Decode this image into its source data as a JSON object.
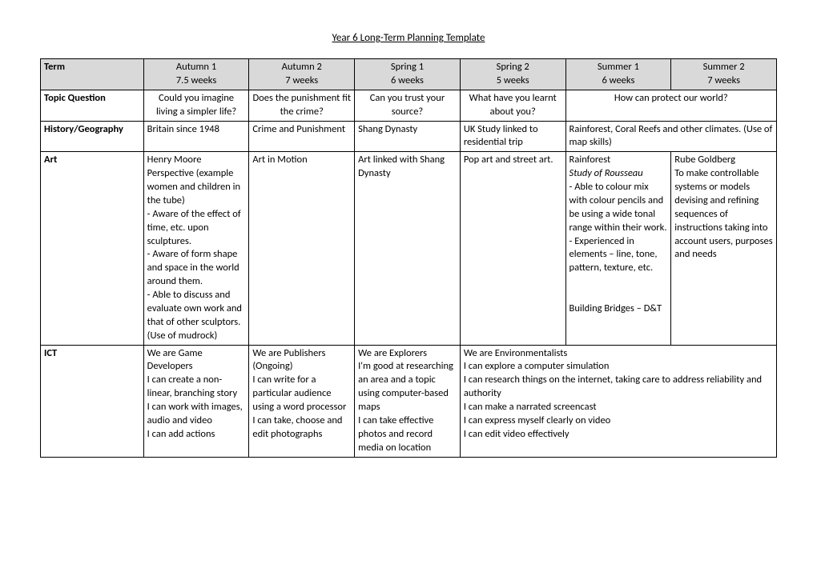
{
  "title": "Year 6 Long-Term Planning Template",
  "columns": {
    "term_label": "Term",
    "terms": [
      {
        "name": "Autumn 1",
        "weeks": "7.5 weeks"
      },
      {
        "name": "Autumn 2",
        "weeks": "7 weeks"
      },
      {
        "name": "Spring 1",
        "weeks": "6 weeks"
      },
      {
        "name": "Spring 2",
        "weeks": "5 weeks"
      },
      {
        "name": "Summer 1",
        "weeks": "6 weeks"
      },
      {
        "name": "Summer 2",
        "weeks": "7 weeks"
      }
    ]
  },
  "rows": {
    "topic": {
      "label": "Topic Question",
      "c1": "Could you imagine living a simpler life?",
      "c2": "Does the punishment fit the crime?",
      "c3": "Can you trust your source?",
      "c4": "What have you learnt about you?",
      "c56": "How can protect our world?"
    },
    "histgeo": {
      "label": "History/Geography",
      "c1": "Britain since 1948",
      "c2": "Crime and Punishment",
      "c3": "Shang Dynasty",
      "c4": "UK Study linked to residential trip",
      "c56": "Rainforest, Coral Reefs and other climates. (Use of map skills)"
    },
    "art": {
      "label": "Art",
      "c1": "Henry Moore Perspective (example women and children in the tube)\n- Aware of the effect of time, etc. upon sculptures.\n- Aware of form shape and space in the world around them.\n- Able to discuss and evaluate own work and that of other sculptors.\n(Use of mudrock)",
      "c2": "Art in Motion",
      "c3": "Art linked with Shang Dynasty",
      "c4": "Pop art and street art.",
      "c5_main": "Rainforest",
      "c5_italic": "Study of Rousseau",
      "c5_rest": "- Able to colour mix with colour pencils and be using a wide tonal range within their work.\n- Experienced in elements – line, tone, pattern, texture, etc.\n\n\nBuilding Bridges – D&T",
      "c6": "Rube Goldberg\nTo make controllable systems or models devising and refining sequences of instructions taking into account users, purposes and needs"
    },
    "ict": {
      "label": "ICT",
      "c1": "We are Game Developers\nI can create a non-linear, branching story\nI can work with images, audio and video\nI can add actions",
      "c2": "We are Publishers (Ongoing)\nI can write for a particular audience using a word processor\nI can take, choose and edit photographs",
      "c3": "We are Explorers\nI'm good at researching an area and a topic using computer-based maps\nI can take effective photos and record media on location",
      "c456": "We are Environmentalists\nI can explore a computer simulation\nI can research things on the internet, taking care to address reliability and authority\nI can make a narrated screencast\nI can express myself clearly on video\nI can edit video effectively"
    }
  }
}
